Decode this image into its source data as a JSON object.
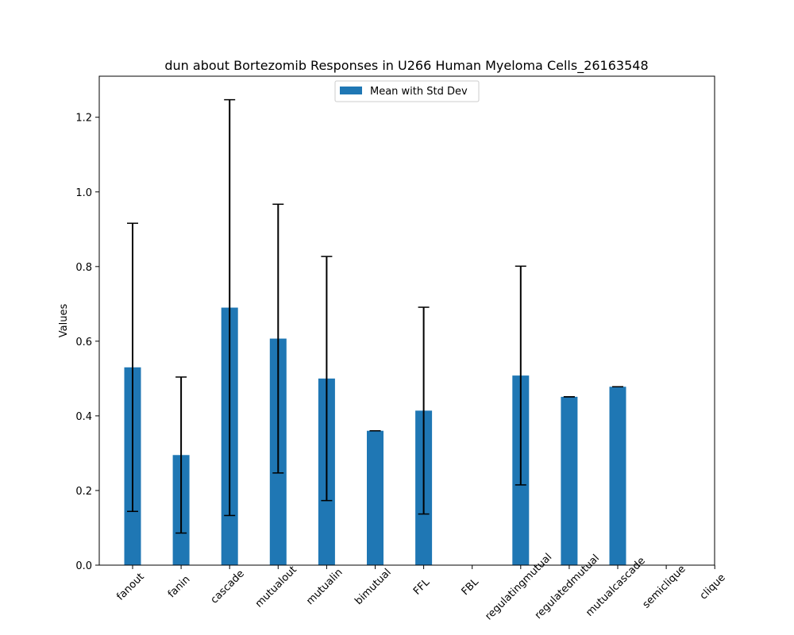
{
  "chart_data": {
    "type": "bar",
    "title": "dun about Bortezomib Responses in U266 Human Myeloma Cells_26163548",
    "xlabel": "",
    "ylabel": "Values",
    "categories": [
      "fanout",
      "fanin",
      "cascade",
      "mutualout",
      "mutualin",
      "bimutual",
      "FFL",
      "FBL",
      "regulatingmutual",
      "regulatedmutual",
      "mutualcascade",
      "semiclique",
      "clique"
    ],
    "series": [
      {
        "name": "Mean with Std Dev",
        "values": [
          0.53,
          0.295,
          0.69,
          0.607,
          0.5,
          0.36,
          0.414,
          0,
          0.508,
          0.451,
          0.478,
          0,
          0
        ],
        "errors": [
          0.386,
          0.209,
          0.557,
          0.36,
          0.327,
          0,
          0.277,
          0,
          0.293,
          0,
          0,
          0,
          0
        ]
      }
    ],
    "ylim": [
      0,
      1.31
    ],
    "yticks": [
      "0.0",
      "0.2",
      "0.4",
      "0.6",
      "0.8",
      "1.0",
      "1.2"
    ],
    "legend_position": "top-center",
    "grid": false,
    "bar_color": "#1f77b4",
    "error_color": "#000000"
  }
}
